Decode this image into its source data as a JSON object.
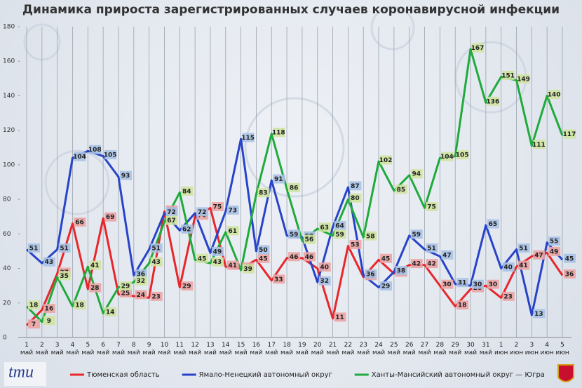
{
  "chart_data": {
    "type": "line",
    "title": "Динамика прироста зарегистрированных случаев коронавирусной инфекции",
    "categories": [
      "1 май",
      "2 май",
      "3 май",
      "4 май",
      "5 май",
      "6 май",
      "7 май",
      "8 май",
      "9 май",
      "10 май",
      "11 май",
      "12 май",
      "13 май",
      "14 май",
      "15 май",
      "16 май",
      "17 май",
      "18 май",
      "19 май",
      "20 май",
      "21 май",
      "22 май",
      "23 май",
      "24 май",
      "25 май",
      "26 май",
      "27 май",
      "28 май",
      "29 май",
      "30 май",
      "31 май",
      "1 июн",
      "2 июн",
      "3 июн",
      "4 июн",
      "5 июн"
    ],
    "series": [
      {
        "name": "Тюменская область",
        "color": "#e8262b",
        "label_fill": "#eba4a4",
        "values": [
          7,
          16,
          37,
          66,
          28,
          69,
          25,
          24,
          23,
          73,
          29,
          70,
          75,
          41,
          40,
          45,
          33,
          46,
          46,
          40,
          11,
          53,
          35,
          45,
          37,
          42,
          42,
          30,
          18,
          28,
          30,
          23,
          41,
          47,
          49,
          36
        ]
      },
      {
        "name": "Ямало-Ненецкий автономный округ",
        "color": "#2743c9",
        "label_fill": "#a8c2e4",
        "values": [
          51,
          43,
          51,
          104,
          108,
          105,
          93,
          36,
          51,
          72,
          62,
          72,
          49,
          73,
          115,
          50,
          91,
          59,
          58,
          32,
          64,
          87,
          36,
          29,
          38,
          59,
          51,
          47,
          31,
          30,
          65,
          40,
          51,
          13,
          55,
          45
        ]
      },
      {
        "name": "Ханты-Мансийский автономный округ — Югра",
        "color": "#1faa3c",
        "label_fill": "#cfe3a0",
        "values": [
          18,
          9,
          35,
          18,
          41,
          14,
          29,
          32,
          43,
          67,
          84,
          45,
          43,
          61,
          39,
          83,
          118,
          86,
          56,
          63,
          59,
          80,
          58,
          102,
          85,
          94,
          75,
          104,
          105,
          167,
          136,
          151,
          149,
          111,
          140,
          117
        ]
      }
    ],
    "ylim": [
      0,
      180
    ],
    "yticks": [
      0,
      20,
      40,
      60,
      80,
      100,
      120,
      140,
      160,
      180
    ],
    "grid": "x",
    "logo": "tmu"
  }
}
